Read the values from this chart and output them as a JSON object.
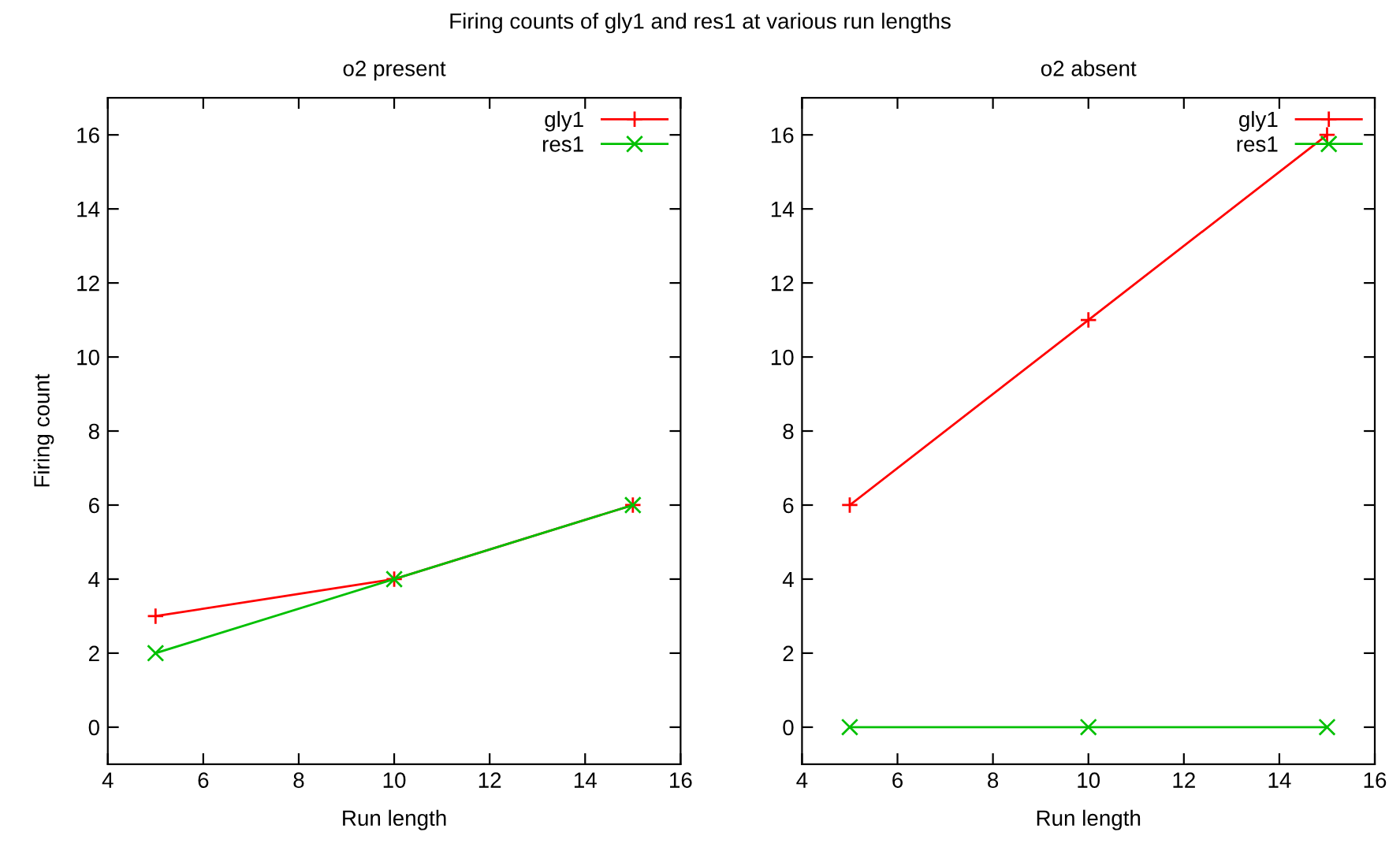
{
  "chart_data": [
    {
      "type": "line",
      "title": "o2 present",
      "xlabel": "Run length",
      "ylabel": "Firing count",
      "annotations": [
        "Firing counts of gly1 and res1 at various run lengths"
      ],
      "x": [
        5,
        10,
        15
      ],
      "series": [
        {
          "name": "gly1",
          "color": "#ff0000",
          "marker": "plus",
          "values": [
            3,
            4,
            6
          ]
        },
        {
          "name": "res1",
          "color": "#00c000",
          "marker": "cross",
          "values": [
            2,
            4,
            6
          ]
        }
      ],
      "xlim": [
        4,
        16
      ],
      "xticks": [
        4,
        6,
        8,
        10,
        12,
        14,
        16
      ],
      "ylim": [
        -1,
        17
      ],
      "yticks": [
        0,
        2,
        4,
        6,
        8,
        10,
        12,
        14,
        16
      ],
      "legend": "top right",
      "grid": false,
      "line_style": "solid"
    },
    {
      "type": "line",
      "title": "o2 absent",
      "xlabel": "Run length",
      "x": [
        5,
        10,
        15
      ],
      "series": [
        {
          "name": "gly1",
          "color": "#ff0000",
          "marker": "plus",
          "values": [
            6,
            11,
            16
          ]
        },
        {
          "name": "res1",
          "color": "#00c000",
          "marker": "cross",
          "values": [
            0,
            0,
            0
          ]
        }
      ],
      "xlim": [
        4,
        16
      ],
      "xticks": [
        4,
        6,
        8,
        10,
        12,
        14,
        16
      ],
      "ylim": [
        -1,
        17
      ],
      "yticks": [
        0,
        2,
        4,
        6,
        8,
        10,
        12,
        14,
        16
      ],
      "legend": "top right",
      "grid": false,
      "line_style": "solid"
    }
  ]
}
